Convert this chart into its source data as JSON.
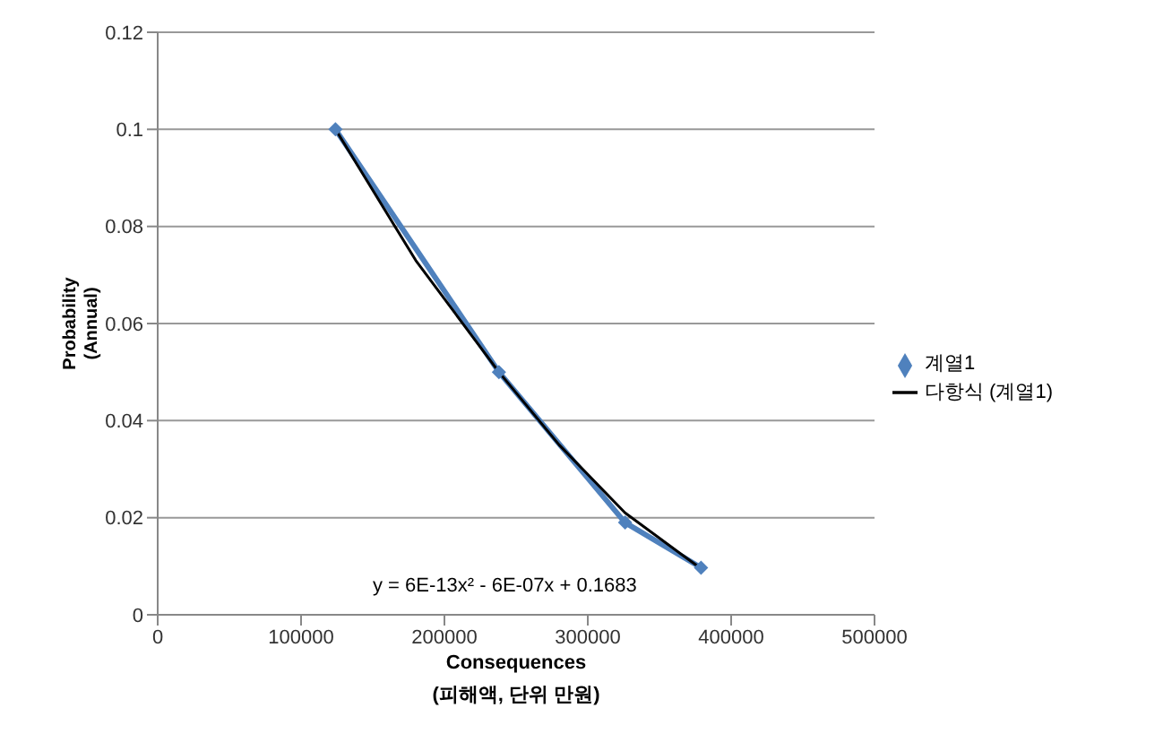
{
  "chart_data": {
    "type": "line",
    "xlabel": "Consequences\n(피해액, 단위 만원)",
    "ylabel": "Probability\n(Annual)",
    "xlim": [
      0,
      500000
    ],
    "xticks": [
      0,
      100000,
      200000,
      300000,
      400000,
      500000
    ],
    "ylim": [
      0,
      0.12
    ],
    "yticks": [
      0,
      0.02,
      0.04,
      0.06,
      0.08,
      0.1,
      0.12
    ],
    "grid": "y",
    "legend": "right",
    "annotations": [
      "y = 6E-13x² - 6E-07x + 0.1683"
    ],
    "series": [
      {
        "name": "계열1",
        "marker": "diamond",
        "color": "#4f81bd",
        "x": [
          124000,
          238000,
          326000,
          379000
        ],
        "values": [
          0.1,
          0.05,
          0.019,
          0.0097
        ]
      },
      {
        "name": "다항식 (계열1)",
        "marker": "none",
        "color": "#000000",
        "x": [
          124000,
          180000,
          238000,
          280000,
          326000,
          379000
        ],
        "values": [
          0.1,
          0.073,
          0.05,
          0.035,
          0.021,
          0.0095
        ]
      }
    ]
  }
}
